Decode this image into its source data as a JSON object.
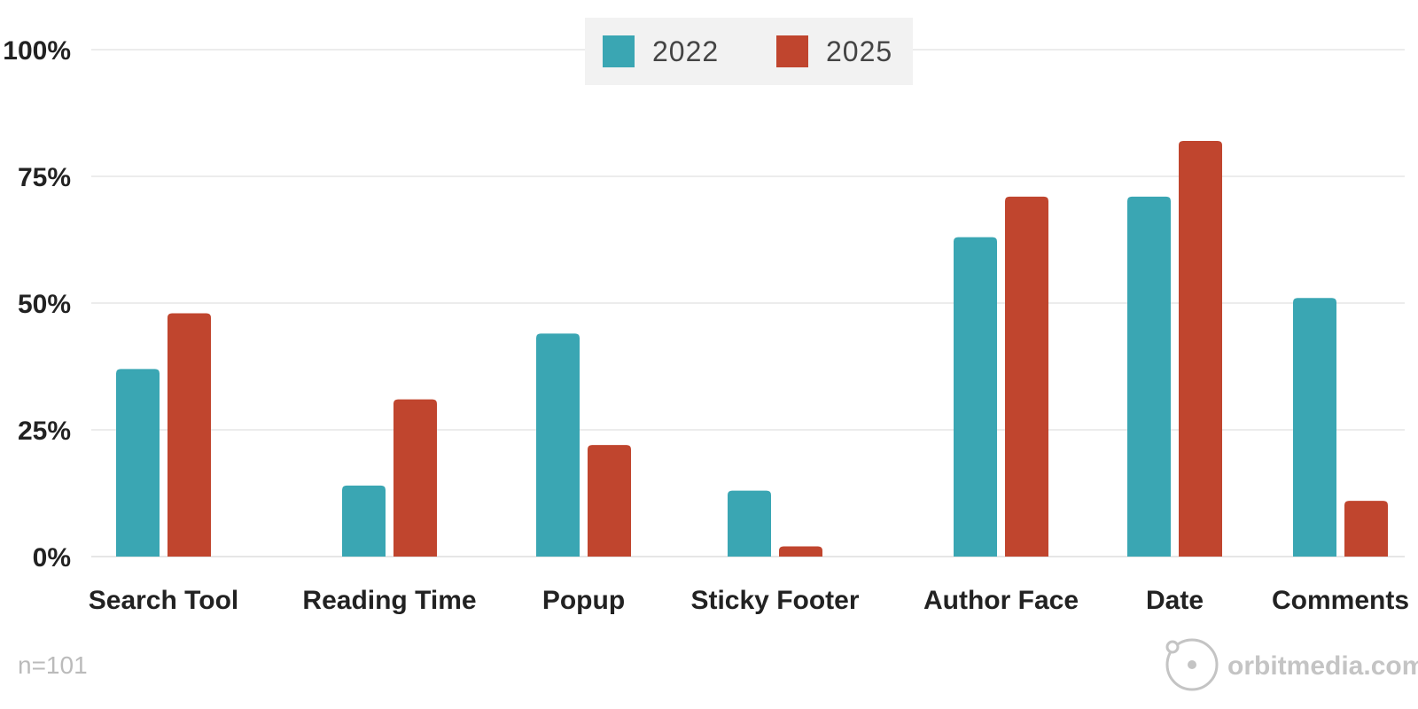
{
  "chart_data": {
    "type": "bar",
    "categories": [
      "Search Tool",
      "Reading Time",
      "Popup",
      "Sticky Footer",
      "Author Face",
      "Date",
      "Comments"
    ],
    "series": [
      {
        "name": "2022",
        "color": "#3aa6b3",
        "values": [
          37,
          14,
          44,
          13,
          63,
          71,
          51
        ]
      },
      {
        "name": "2025",
        "color": "#c0452e",
        "values": [
          48,
          31,
          22,
          2,
          71,
          82,
          11
        ]
      }
    ],
    "yticks": [
      "0%",
      "25%",
      "50%",
      "75%",
      "100%"
    ],
    "ylim": [
      0,
      100
    ],
    "grid": true,
    "legend_position": "top-center"
  },
  "footnote": "n=101",
  "brand": "orbitmedia.com",
  "brand_icon": "orbit-logo-icon"
}
